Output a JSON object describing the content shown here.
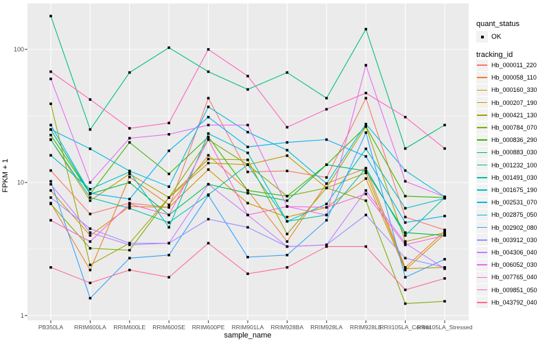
{
  "figure": {
    "background": "#FFFFFF",
    "panel_background": "#EBEBEB",
    "gridline_color": "#FFFFFF",
    "tick_color": "#333333",
    "axis_text_color": "#4D4D4D",
    "point_color": "#000000"
  },
  "axes": {
    "x_title": "sample_name",
    "y_title": "FPKM + 1",
    "y_scale": "log10",
    "y_major_ticks": [
      1,
      10,
      100
    ],
    "y_minor_ticks": [
      3.1623,
      31.623
    ],
    "y_tick_labels": [
      "1",
      "10",
      "100"
    ]
  },
  "legend": {
    "quant_status_title": "quant_status",
    "quant_status_value": "OK",
    "tracking_id_title": "tracking_id"
  },
  "chart_data": {
    "type": "line",
    "title": "",
    "xlabel": "sample_name",
    "ylabel": "FPKM + 1",
    "y_axis_scale": "log10",
    "ylim": [
      1,
      200
    ],
    "grid": true,
    "legend_position": "right",
    "marker": "black-square-point",
    "categories": [
      "PB350LA",
      "RRIM600LA",
      "RRIM600LE",
      "RRIM600SE",
      "RRIM600PE",
      "RRIM901LA",
      "RRIM928BA",
      "RRIM928LA",
      "RRIM928LE",
      "RRII105LA_Control",
      "RRII105LA_Stressed"
    ],
    "series": [
      {
        "name": "Hb_000011_220",
        "color": "#F8766D",
        "values": [
          12.3,
          5.8,
          7.0,
          6.5,
          43,
          12,
          12.2,
          10.9,
          43,
          5.5,
          4.4
        ]
      },
      {
        "name": "Hb_000058_110",
        "color": "#EA8331",
        "values": [
          7.0,
          2.2,
          11.0,
          6.8,
          16,
          8.7,
          3.6,
          9.8,
          12.8,
          2.3,
          4.3
        ]
      },
      {
        "name": "Hb_000160_330",
        "color": "#D89000",
        "values": [
          8.7,
          4.0,
          6.6,
          6.5,
          12.5,
          7.0,
          5.5,
          6.5,
          10.7,
          2.2,
          4.1
        ]
      },
      {
        "name": "Hb_000207_190",
        "color": "#C09B00",
        "values": [
          21,
          7.3,
          11.6,
          7.7,
          14,
          13.6,
          15.9,
          9.1,
          11.8,
          2.25,
          2.3
        ]
      },
      {
        "name": "Hb_000421_130",
        "color": "#A3A500",
        "values": [
          39,
          2.4,
          3.5,
          7.7,
          15,
          14.8,
          4.1,
          9.1,
          26.3,
          3.6,
          4.2
        ]
      },
      {
        "name": "Hb_000784_070",
        "color": "#7CAE00",
        "values": [
          6.9,
          3.2,
          3.1,
          7.7,
          21,
          13.6,
          7.9,
          9.1,
          7.3,
          1.23,
          1.28
        ]
      },
      {
        "name": "Hb_000836_290",
        "color": "#39B600",
        "values": [
          22.7,
          8.2,
          20,
          11.6,
          22,
          8.7,
          7.9,
          13.6,
          26.3,
          7.9,
          7.7
        ]
      },
      {
        "name": "Hb_000883_030",
        "color": "#00BB4E",
        "values": [
          25,
          8.2,
          10,
          5.7,
          9.7,
          8.3,
          7.3,
          13.6,
          12.2,
          4.2,
          4.0
        ]
      },
      {
        "name": "Hb_001232_100",
        "color": "#00BF7D",
        "values": [
          178,
          25,
          67,
          103,
          68,
          50,
          67,
          43,
          142,
          18,
          27
        ]
      },
      {
        "name": "Hb_001491_030",
        "color": "#00C1A3",
        "values": [
          21,
          7.7,
          6.4,
          5.0,
          8.1,
          13.6,
          5.1,
          5.7,
          12.8,
          4.0,
          7.7
        ]
      },
      {
        "name": "Hb_001675_190",
        "color": "#00BFC4",
        "values": [
          16,
          8.9,
          12,
          4.6,
          23.3,
          16.7,
          5.1,
          6.9,
          17.9,
          6.4,
          7.6
        ]
      },
      {
        "name": "Hb_002531_070",
        "color": "#00BAE0",
        "values": [
          25,
          17.9,
          12.2,
          9.3,
          37,
          23.9,
          17.5,
          9.8,
          27.5,
          12.3,
          7.8
        ]
      },
      {
        "name": "Hb_002875_050",
        "color": "#00B0F6",
        "values": [
          27,
          8.3,
          7.5,
          17.3,
          31,
          18.5,
          20,
          21,
          15.7,
          5.0,
          5.6
        ]
      },
      {
        "name": "Hb_002902_080",
        "color": "#35A2FF",
        "values": [
          10.2,
          1.35,
          2.7,
          2.85,
          8.0,
          2.75,
          2.85,
          5.2,
          23.7,
          1.94,
          2.65
        ]
      },
      {
        "name": "Hb_003912_030",
        "color": "#9590FF",
        "values": [
          7.7,
          4.5,
          3.5,
          3.5,
          5.3,
          4.6,
          3.3,
          3.4,
          5.7,
          2.7,
          2.3
        ]
      },
      {
        "name": "Hb_004306_040",
        "color": "#C77CFF",
        "values": [
          9.7,
          4.2,
          3.4,
          3.5,
          9.7,
          5.7,
          3.3,
          3.4,
          8.7,
          3.5,
          2.25
        ]
      },
      {
        "name": "Hb_006052_030",
        "color": "#E76BF3",
        "values": [
          60,
          10,
          21.5,
          23,
          27,
          27,
          6.6,
          5.7,
          76,
          10.2,
          7.8
        ]
      },
      {
        "name": "Hb_007765_040",
        "color": "#FA62DB",
        "values": [
          5.2,
          3.6,
          6.9,
          5.7,
          21,
          5.7,
          6.6,
          6.5,
          8.2,
          3.4,
          4.0
        ]
      },
      {
        "name": "Hb_009851_050",
        "color": "#FF62BC",
        "values": [
          68,
          42,
          25.5,
          28,
          100,
          63,
          26,
          35.5,
          47,
          31,
          18
        ]
      },
      {
        "name": "Hb_043792_040",
        "color": "#FF6A98",
        "values": [
          2.3,
          1.76,
          2.2,
          1.94,
          3.5,
          2.06,
          2.3,
          3.3,
          3.3,
          1.56,
          1.9
        ]
      }
    ]
  }
}
